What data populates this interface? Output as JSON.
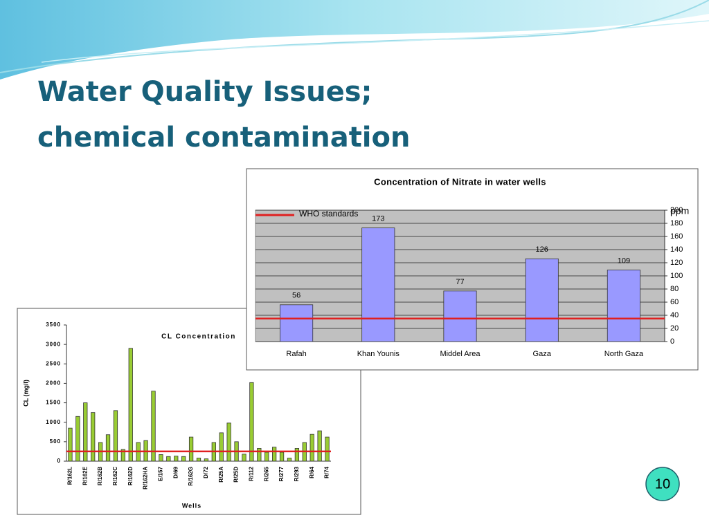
{
  "slide": {
    "title_line1": "Water Quality Issues;",
    "title_line2": "chemical contamination",
    "page_number": "10"
  },
  "chart_data": [
    {
      "type": "bar",
      "title": "CL Concentration",
      "y_label": "CL (mg/l)",
      "x_label": "Wells",
      "categories": [
        "R/162L",
        null,
        "R/162E",
        null,
        "R/162B",
        null,
        "R/162C",
        null,
        "R/162D",
        null,
        "R/162HA",
        null,
        "E/157",
        null,
        "D/69",
        null,
        "R/162G",
        null,
        "D/72",
        null,
        "R/25A",
        null,
        "R/25D",
        null,
        "R/112",
        null,
        "R/265",
        null,
        "R/277",
        null,
        "R/293",
        null,
        "R/64",
        null,
        "R/74"
      ],
      "values": [
        850,
        1150,
        1500,
        1250,
        480,
        680,
        1300,
        300,
        2900,
        480,
        530,
        1800,
        170,
        120,
        130,
        120,
        620,
        80,
        60,
        480,
        730,
        980,
        500,
        180,
        2020,
        330,
        230,
        360,
        230,
        80,
        330,
        480,
        690,
        780,
        620
      ],
      "color": "#99cc33",
      "ylim": [
        0,
        3500
      ],
      "yticks": [
        0,
        500,
        1000,
        1500,
        2000,
        2500,
        3000,
        3500
      ],
      "grid": false,
      "y_axis_side": "left",
      "reference_line": {
        "value": 250,
        "color": "#e02020"
      }
    },
    {
      "type": "bar",
      "title": "Concentration of Nitrate in water wells",
      "y_label": "ppm",
      "categories": [
        "Rafah",
        "Khan Younis",
        "Middel Area",
        "Gaza",
        "North Gaza"
      ],
      "values": [
        56,
        173,
        77,
        126,
        109
      ],
      "color": "#9999ff",
      "ylim": [
        0,
        200
      ],
      "yticks": [
        0,
        20,
        40,
        60,
        80,
        100,
        120,
        140,
        160,
        180,
        200
      ],
      "grid": true,
      "y_axis_side": "right",
      "plot_background": "#c0c0c0",
      "show_value_labels": true,
      "reference_line": {
        "name": "WHO standards",
        "value": 35,
        "color": "#e02020"
      }
    }
  ]
}
